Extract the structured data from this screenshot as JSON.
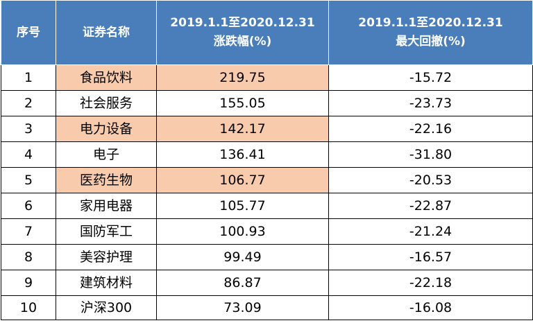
{
  "header": {
    "col_index": "序号",
    "col_name": "证券名称",
    "col_change": [
      "2019.1.1至2020.12.31",
      "涨跌幅(%)"
    ],
    "col_drawdown": [
      "2019.1.1至2020.12.31",
      "最大回撤(%)"
    ]
  },
  "rows": [
    {
      "index": "1",
      "name": "食品饮料",
      "change": "219.75",
      "drawdown": "-15.72",
      "highlight": true
    },
    {
      "index": "2",
      "name": "社会服务",
      "change": "155.05",
      "drawdown": "-23.73",
      "highlight": false
    },
    {
      "index": "3",
      "name": "电力设备",
      "change": "142.17",
      "drawdown": "-22.16",
      "highlight": true
    },
    {
      "index": "4",
      "name": "电子",
      "change": "136.41",
      "drawdown": "-31.80",
      "highlight": false
    },
    {
      "index": "5",
      "name": "医药生物",
      "change": "106.77",
      "drawdown": "-20.53",
      "highlight": true
    },
    {
      "index": "6",
      "name": "家用电器",
      "change": "105.77",
      "drawdown": "-22.87",
      "highlight": false
    },
    {
      "index": "7",
      "name": "国防军工",
      "change": "100.93",
      "drawdown": "-21.24",
      "highlight": false
    },
    {
      "index": "8",
      "name": "美容护理",
      "change": "99.49",
      "drawdown": "-16.57",
      "highlight": false
    },
    {
      "index": "9",
      "name": "建筑材料",
      "change": "86.87",
      "drawdown": "-22.18",
      "highlight": false
    },
    {
      "index": "10",
      "name": "沪深300",
      "change": "73.09",
      "drawdown": "-16.08",
      "highlight": false
    }
  ],
  "colors": {
    "header_bg": "#4a7ebb",
    "highlight_bg": "#f8cbad"
  }
}
